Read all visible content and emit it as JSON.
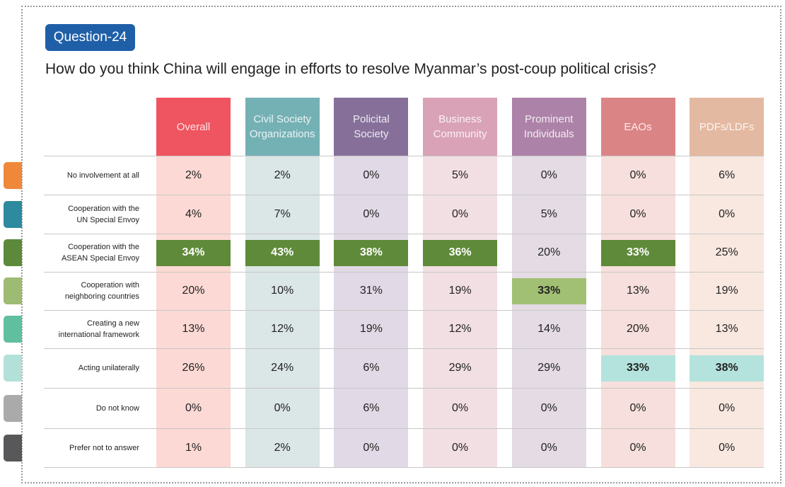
{
  "badge": "Question-24",
  "question": "How do you think China will engage in efforts to resolve Myanmar’s post-coup political crisis?",
  "chart_data": {
    "type": "table",
    "columns": [
      {
        "label": "Overall",
        "head": "#ef5560",
        "body": "#fcd9d4"
      },
      {
        "label": "Civil Society\nOrganizations",
        "head": "#74b1b5",
        "body": "#dbe6e6"
      },
      {
        "label": "Policital\nSociety",
        "head": "#86709a",
        "body": "#e1d9e5"
      },
      {
        "label": "Business\nCommunity",
        "head": "#d9a2b6",
        "body": "#f2dfe3"
      },
      {
        "label": "Prominent\nIndividuals",
        "head": "#ad82a8",
        "body": "#e4dbe4"
      },
      {
        "label": "EAOs",
        "head": "#db8486",
        "body": "#f6dfdc"
      },
      {
        "label": "PDFs/LDFs",
        "head": "#e4b9a1",
        "body": "#f9e8e0"
      }
    ],
    "rows": [
      {
        "label": "No involvement at all",
        "color": "#f0883a",
        "values": [
          "2%",
          "2%",
          "0%",
          "5%",
          "0%",
          "0%",
          "6%"
        ],
        "highlight": []
      },
      {
        "label": "Cooperation with the\nUN Special Envoy",
        "color": "#2e8a9e",
        "values": [
          "4%",
          "7%",
          "0%",
          "0%",
          "5%",
          "0%",
          "0%"
        ],
        "highlight": []
      },
      {
        "label": "Cooperation with the\nASEAN Special Envoy",
        "color": "#5d8a3a",
        "values": [
          "34%",
          "43%",
          "38%",
          "36%",
          "20%",
          "33%",
          "25%"
        ],
        "highlight": [
          0,
          1,
          2,
          3,
          5
        ],
        "hl_color": "#5f8a39",
        "hl_text": "#fff"
      },
      {
        "label": "Cooperation with\nneighboring countries",
        "color": "#9dbb72",
        "values": [
          "20%",
          "10%",
          "31%",
          "19%",
          "33%",
          "13%",
          "19%"
        ],
        "highlight": [
          4
        ],
        "hl_color": "#a2c074",
        "hl_text": "#222"
      },
      {
        "label": "Creating a new\ninternational framework",
        "color": "#5fbf9f",
        "values": [
          "13%",
          "12%",
          "19%",
          "12%",
          "14%",
          "20%",
          "13%"
        ],
        "highlight": []
      },
      {
        "label": "Acting unilaterally",
        "color": "#b3e0d8",
        "values": [
          "26%",
          "24%",
          "6%",
          "29%",
          "29%",
          "33%",
          "38%"
        ],
        "highlight": [
          5,
          6
        ],
        "hl_color": "#b3e3dc",
        "hl_text": "#222"
      },
      {
        "label": "Do not know",
        "color": "#aaaaaa",
        "values": [
          "0%",
          "0%",
          "6%",
          "0%",
          "0%",
          "0%",
          "0%"
        ],
        "highlight": []
      },
      {
        "label": "Prefer not to answer",
        "color": "#58585a",
        "values": [
          "1%",
          "2%",
          "0%",
          "0%",
          "0%",
          "0%",
          "0%"
        ],
        "highlight": []
      }
    ]
  }
}
